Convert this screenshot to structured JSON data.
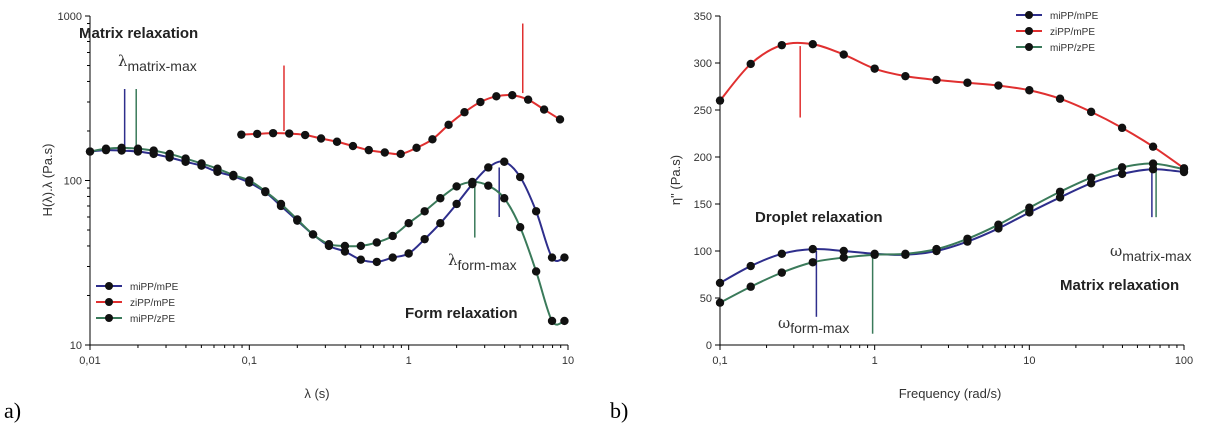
{
  "panel_labels": [
    "a)",
    "b)"
  ],
  "chart_data": [
    {
      "type": "line",
      "xscale": "log",
      "yscale": "log",
      "xlabel": "λ (s)",
      "ylabel": "H(λ).λ (Pa.s)",
      "xlim": [
        0.01,
        10
      ],
      "ylim": [
        10,
        1000
      ],
      "xticks": [
        "0,01",
        "0,1",
        "1",
        "10"
      ],
      "yticks": [
        "10",
        "100",
        "1000"
      ],
      "legend_position": "bottom-left",
      "series": [
        {
          "name": "miPP/mPE",
          "color": "#2e2e8c",
          "x": [
            0.01,
            0.0126,
            0.0158,
            0.02,
            0.0251,
            0.0316,
            0.0398,
            0.0501,
            0.0631,
            0.0794,
            0.1,
            0.126,
            0.158,
            0.2,
            0.251,
            0.316,
            0.398,
            0.501,
            0.631,
            0.794,
            1,
            1.26,
            1.58,
            2,
            2.51,
            3.16,
            3.98,
            5.01,
            6.31,
            7.94,
            9.5
          ],
          "y": [
            150,
            153,
            152,
            150,
            145,
            138,
            130,
            123,
            113,
            106,
            97,
            85,
            70,
            57,
            47,
            40,
            37,
            33,
            32,
            34,
            36,
            44,
            55,
            72,
            95,
            120,
            130,
            105,
            65,
            34,
            34
          ]
        },
        {
          "name": "ziPP/mPE",
          "color": "#e03030",
          "x": [
            0.0891,
            0.112,
            0.141,
            0.178,
            0.224,
            0.282,
            0.355,
            0.447,
            0.562,
            0.708,
            0.891,
            1.12,
            1.41,
            1.78,
            2.24,
            2.82,
            3.55,
            4.47,
            5.62,
            7.08,
            8.91
          ],
          "y": [
            190,
            192,
            194,
            193,
            189,
            180,
            172,
            162,
            153,
            148,
            145,
            158,
            178,
            218,
            260,
            300,
            325,
            330,
            310,
            270,
            235
          ]
        },
        {
          "name": "miPP/zPE",
          "color": "#3a7a5a",
          "x": [
            0.01,
            0.0126,
            0.0158,
            0.02,
            0.0251,
            0.0316,
            0.0398,
            0.0501,
            0.0631,
            0.0794,
            0.1,
            0.126,
            0.158,
            0.2,
            0.251,
            0.316,
            0.398,
            0.501,
            0.631,
            0.794,
            1,
            1.26,
            1.58,
            2,
            2.51,
            3.16,
            3.98,
            5.01,
            6.31,
            7.94,
            9.5
          ],
          "y": [
            150,
            156,
            158,
            156,
            152,
            145,
            136,
            127,
            118,
            108,
            100,
            86,
            72,
            58,
            47,
            41,
            40,
            40,
            42,
            46,
            55,
            65,
            78,
            92,
            98,
            93,
            78,
            52,
            28,
            14,
            14
          ]
        }
      ],
      "annotations": {
        "matrix_title": "Matrix relaxation",
        "form_title": "Form relaxation",
        "lambda_matrix_symbol": "λ",
        "lambda_matrix_sub": "matrix-max",
        "lambda_form_symbol": "λ",
        "lambda_form_sub": "form-max"
      },
      "markers": [
        {
          "x": 0.0165,
          "y1": 160,
          "y2": 360,
          "color": "#2e2e8c"
        },
        {
          "x": 0.0195,
          "y1": 160,
          "y2": 360,
          "color": "#3a7a5a"
        },
        {
          "x": 0.165,
          "y1": 200,
          "y2": 500,
          "color": "#e03030"
        },
        {
          "x": 5.2,
          "y1": 340,
          "y2": 900,
          "color": "#e03030"
        },
        {
          "x": 2.6,
          "y1": 45,
          "y2": 95,
          "color": "#3a7a5a"
        },
        {
          "x": 3.7,
          "y1": 60,
          "y2": 120,
          "color": "#2e2e8c"
        }
      ]
    },
    {
      "type": "line",
      "xscale": "log",
      "yscale": "linear",
      "xlabel": "Frequency (rad/s)",
      "ylabel": "η\" (Pa.s)",
      "xlim": [
        0.1,
        100
      ],
      "ylim": [
        0,
        350
      ],
      "xticks": [
        "0,1",
        "1",
        "10",
        "100"
      ],
      "yticks": [
        "0",
        "50",
        "100",
        "150",
        "200",
        "250",
        "300",
        "350"
      ],
      "legend_position": "top-right",
      "series": [
        {
          "name": "miPP/mPE",
          "color": "#2e2e8c",
          "x": [
            0.1,
            0.158,
            0.251,
            0.398,
            0.631,
            1,
            1.58,
            2.51,
            3.98,
            6.31,
            10,
            15.8,
            25.1,
            39.8,
            63.1,
            100
          ],
          "y": [
            66,
            84,
            97,
            102,
            100,
            97,
            96,
            100,
            110,
            124,
            141,
            157,
            172,
            182,
            187,
            184
          ]
        },
        {
          "name": "ziPP/mPE",
          "color": "#e03030",
          "x": [
            0.1,
            0.158,
            0.251,
            0.398,
            0.631,
            1,
            1.58,
            2.51,
            3.98,
            6.31,
            10,
            15.8,
            25.1,
            39.8,
            63.1,
            100
          ],
          "y": [
            260,
            299,
            319,
            320,
            309,
            294,
            286,
            282,
            279,
            276,
            271,
            262,
            248,
            231,
            211,
            188
          ]
        },
        {
          "name": "miPP/zPE",
          "color": "#3a7a5a",
          "x": [
            0.1,
            0.158,
            0.251,
            0.398,
            0.631,
            1,
            1.58,
            2.51,
            3.98,
            6.31,
            10,
            15.8,
            25.1,
            39.8,
            63.1,
            100
          ],
          "y": [
            45,
            62,
            77,
            88,
            93,
            96,
            97,
            102,
            113,
            128,
            146,
            163,
            178,
            189,
            193,
            187
          ]
        }
      ],
      "annotations": {
        "droplet_title": "Droplet relaxation",
        "matrix_title": "Matrix relaxation",
        "omega_form_symbol": "ω",
        "omega_form_sub": "form-max",
        "omega_matrix_symbol": "ω",
        "omega_matrix_sub": "matrix-max"
      },
      "markers": [
        {
          "x": 0.33,
          "y1": 242,
          "y2": 318,
          "color": "#e03030"
        },
        {
          "x": 0.42,
          "y1": 30,
          "y2": 100,
          "color": "#2e2e8c"
        },
        {
          "x": 0.97,
          "y1": 12,
          "y2": 96,
          "color": "#3a7a5a"
        },
        {
          "x": 62,
          "y1": 136,
          "y2": 186,
          "color": "#2e2e8c"
        },
        {
          "x": 66,
          "y1": 136,
          "y2": 192,
          "color": "#3a7a5a"
        }
      ]
    }
  ]
}
